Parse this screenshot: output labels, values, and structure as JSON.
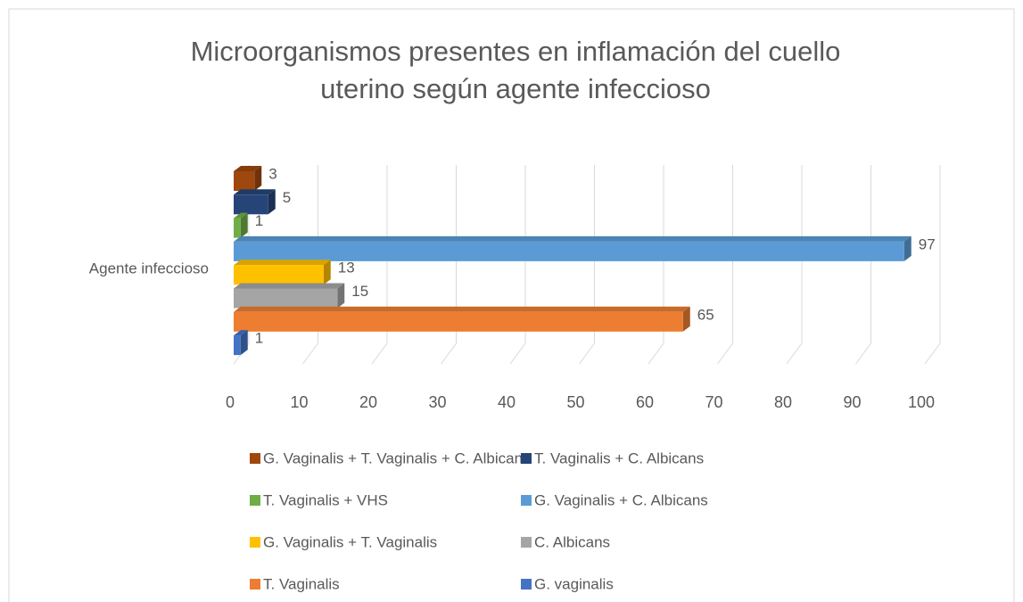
{
  "chart_data": {
    "type": "bar3d_horizontal",
    "title": [
      "Microorganismos presentes en inflamación del cuello",
      "uterino según agente infeccioso"
    ],
    "categories": [
      "Agente infeccioso"
    ],
    "series": [
      {
        "name": "G. Vaginalis + T. Vaginalis + C. Albicans",
        "color": "#9e480e",
        "values": [
          3
        ]
      },
      {
        "name": "T. Vaginalis + C. Albicans",
        "color": "#264478",
        "values": [
          5
        ]
      },
      {
        "name": "T. Vaginalis + VHS",
        "color": "#70ad47",
        "values": [
          1
        ]
      },
      {
        "name": "G. Vaginalis + C. Albicans",
        "color": "#5b9bd5",
        "values": [
          97
        ]
      },
      {
        "name": "G. Vaginalis + T. Vaginalis",
        "color": "#ffc000",
        "values": [
          13
        ]
      },
      {
        "name": "C. Albicans",
        "color": "#a5a5a5",
        "values": [
          15
        ]
      },
      {
        "name": "T. Vaginalis",
        "color": "#ed7d31",
        "values": [
          65
        ]
      },
      {
        "name": "G. vaginalis",
        "color": "#4472c4",
        "values": [
          1
        ]
      }
    ],
    "xlim": [
      0,
      100
    ],
    "xticks": [
      0,
      10,
      20,
      30,
      40,
      50,
      60,
      70,
      80,
      90,
      100
    ],
    "grid": true,
    "legend": "bottom"
  }
}
